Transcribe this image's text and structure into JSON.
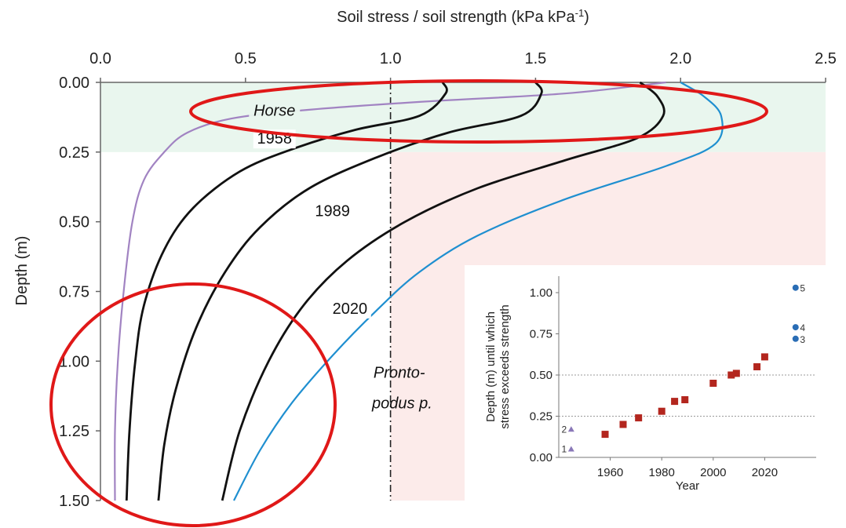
{
  "chart_data": {
    "type": "line",
    "title": "",
    "xlabel_main": "Soil stress / soil strength (kPa kPa",
    "xlabel_sup": "-1",
    "xlabel_end": ")",
    "ylabel": "Depth (m)",
    "xlim": [
      0,
      2.5
    ],
    "ylim": [
      1.5,
      0
    ],
    "x_ticks": [
      "0.0",
      "0.5",
      "1.0",
      "1.5",
      "2.0",
      "2.5"
    ],
    "y_ticks": [
      "0.00",
      "0.25",
      "0.50",
      "0.75",
      "1.00",
      "1.25",
      "1.50"
    ],
    "reference_line_x": 1.0,
    "bands": [
      {
        "name": "topsoil",
        "depth": [
          0.0,
          0.25
        ],
        "color": "#e9f6ee"
      },
      {
        "name": "subsoil",
        "depth": [
          0.25,
          1.5
        ],
        "x_from": 1.0,
        "color": "#fcebea"
      }
    ],
    "series": [
      {
        "name": "Horse",
        "color": "#a183c2",
        "label_color": "#7a4fb0",
        "points": [
          [
            1.95,
            0.0
          ],
          [
            1.6,
            0.04
          ],
          [
            1.1,
            0.07
          ],
          [
            0.7,
            0.1
          ],
          [
            0.45,
            0.13
          ],
          [
            0.3,
            0.18
          ],
          [
            0.22,
            0.25
          ],
          [
            0.15,
            0.35
          ],
          [
            0.11,
            0.5
          ],
          [
            0.08,
            0.75
          ],
          [
            0.06,
            1.0
          ],
          [
            0.05,
            1.25
          ],
          [
            0.05,
            1.5
          ]
        ]
      },
      {
        "name": "1958",
        "color": "#111111",
        "points": [
          [
            1.18,
            0.0
          ],
          [
            1.19,
            0.04
          ],
          [
            1.1,
            0.12
          ],
          [
            0.88,
            0.17
          ],
          [
            0.66,
            0.24
          ],
          [
            0.48,
            0.32
          ],
          [
            0.32,
            0.45
          ],
          [
            0.22,
            0.6
          ],
          [
            0.15,
            0.8
          ],
          [
            0.12,
            1.0
          ],
          [
            0.1,
            1.25
          ],
          [
            0.09,
            1.5
          ]
        ]
      },
      {
        "name": "other-1",
        "color": "#111111",
        "points": [
          [
            1.5,
            0.0
          ],
          [
            1.52,
            0.04
          ],
          [
            1.45,
            0.12
          ],
          [
            1.2,
            0.18
          ],
          [
            0.95,
            0.27
          ],
          [
            0.72,
            0.38
          ],
          [
            0.55,
            0.52
          ],
          [
            0.43,
            0.68
          ],
          [
            0.33,
            0.88
          ],
          [
            0.26,
            1.1
          ],
          [
            0.22,
            1.3
          ],
          [
            0.2,
            1.5
          ]
        ]
      },
      {
        "name": "1989",
        "color": "#111111",
        "points": [
          [
            1.86,
            0.0
          ],
          [
            1.92,
            0.05
          ],
          [
            1.94,
            0.12
          ],
          [
            1.85,
            0.2
          ],
          [
            1.6,
            0.28
          ],
          [
            1.3,
            0.38
          ],
          [
            1.05,
            0.5
          ],
          [
            0.85,
            0.64
          ],
          [
            0.7,
            0.8
          ],
          [
            0.58,
            1.0
          ],
          [
            0.48,
            1.25
          ],
          [
            0.42,
            1.5
          ]
        ]
      },
      {
        "name": "2020",
        "color": "#1f8fd0",
        "label_color": "#1f8fd0",
        "points": [
          [
            2.0,
            0.0
          ],
          [
            2.08,
            0.05
          ],
          [
            2.14,
            0.12
          ],
          [
            2.12,
            0.22
          ],
          [
            1.95,
            0.3
          ],
          [
            1.6,
            0.42
          ],
          [
            1.3,
            0.55
          ],
          [
            1.1,
            0.68
          ],
          [
            0.95,
            0.82
          ],
          [
            0.8,
            0.98
          ],
          [
            0.66,
            1.15
          ],
          [
            0.55,
            1.32
          ],
          [
            0.46,
            1.5
          ]
        ]
      }
    ],
    "curve_labels": [
      {
        "text": "Horse",
        "x": 0.6,
        "y": 0.12,
        "series": "Horse",
        "italic": true
      },
      {
        "text": "1958",
        "x": 0.6,
        "y": 0.22
      },
      {
        "text": "1989",
        "x": 0.8,
        "y": 0.48
      },
      {
        "text": "2020",
        "x": 0.86,
        "y": 0.83
      },
      {
        "text": "Pronto-",
        "x": 1.03,
        "y": 1.06,
        "series": "2020",
        "italic": true
      },
      {
        "text": "podus p.",
        "x": 1.04,
        "y": 1.17,
        "series": "2020",
        "italic": true
      }
    ],
    "inset": {
      "type": "scatter",
      "xlabel": "Year",
      "ylabel_line1": "Depth (m) until which",
      "ylabel_line2": "stress exceeds strength",
      "xlim": [
        1940,
        2040
      ],
      "ylim": [
        0,
        1.1
      ],
      "x_ticks": [
        "1960",
        "1980",
        "2000",
        "2020"
      ],
      "y_ticks": [
        "0.00",
        "0.25",
        "0.50",
        "0.75",
        "1.00"
      ],
      "ref_lines_y": [
        0.25,
        0.5
      ],
      "squares": {
        "color": "#b3261e",
        "points": [
          [
            1958,
            0.14
          ],
          [
            1965,
            0.2
          ],
          [
            1971,
            0.24
          ],
          [
            1980,
            0.28
          ],
          [
            1985,
            0.34
          ],
          [
            1989,
            0.35
          ],
          [
            2000,
            0.45
          ],
          [
            2007,
            0.5
          ],
          [
            2009,
            0.51
          ],
          [
            2017,
            0.55
          ],
          [
            2020,
            0.61
          ]
        ]
      },
      "triangles": {
        "color": "#8a78b8",
        "points": [
          {
            "x": 1943,
            "y": 0.05,
            "label": "1"
          },
          {
            "x": 1943,
            "y": 0.17,
            "label": "2"
          }
        ]
      },
      "circles": {
        "color": "#2a6db5",
        "points": [
          {
            "x": 2032,
            "y": 0.72,
            "label": "3"
          },
          {
            "x": 2032,
            "y": 0.79,
            "label": "4"
          },
          {
            "x": 2032,
            "y": 1.03,
            "label": "5"
          }
        ]
      }
    },
    "annotations": [
      {
        "shape": "ellipse",
        "color": "#e01818"
      },
      {
        "shape": "ellipse",
        "color": "#e01818"
      }
    ]
  }
}
